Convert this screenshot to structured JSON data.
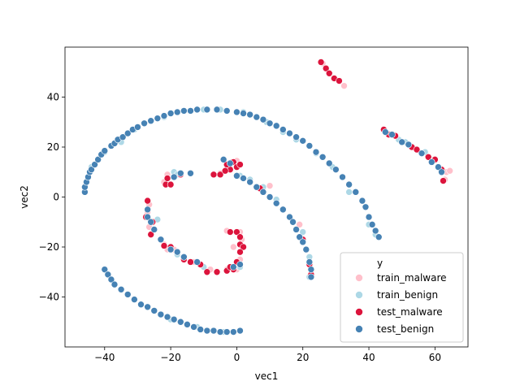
{
  "chart_data": {
    "type": "scatter",
    "xlabel": "vec1",
    "ylabel": "vec2",
    "xlim": [
      -52,
      70
    ],
    "ylim": [
      -60,
      60
    ],
    "xticks": [
      -40,
      -20,
      0,
      20,
      40,
      60
    ],
    "yticks": [
      -40,
      -20,
      0,
      20,
      40
    ],
    "grid": false,
    "legend": {
      "title": "y",
      "placement": "lower-right"
    },
    "series": [
      {
        "name": "train_malware",
        "color": "#ffc0cb",
        "points": [
          [
            26,
            53.5
          ],
          [
            32.5,
            44.5
          ],
          [
            63.5,
            10
          ],
          [
            63,
            7
          ],
          [
            64.5,
            10.5
          ],
          [
            -21,
            9
          ],
          [
            -22,
            6
          ],
          [
            -18,
            9
          ],
          [
            -14,
            9.5
          ],
          [
            -2.5,
            13
          ],
          [
            -1.5,
            14
          ],
          [
            0,
            14.5
          ],
          [
            -5,
            9.5
          ],
          [
            -26.5,
            -3
          ],
          [
            -27,
            -6
          ],
          [
            -26.5,
            -12
          ],
          [
            -26,
            -15
          ],
          [
            -22,
            -19
          ],
          [
            -21,
            -21
          ],
          [
            -19,
            -21
          ],
          [
            -13,
            -26
          ],
          [
            -10,
            -28
          ],
          [
            -8,
            -29
          ],
          [
            -3,
            -29
          ],
          [
            0,
            -29
          ],
          [
            1,
            -25
          ],
          [
            1.5,
            -17
          ],
          [
            -1,
            -20
          ],
          [
            -3,
            -13.5
          ],
          [
            1,
            -14
          ],
          [
            10,
            4.5
          ],
          [
            14,
            -5
          ],
          [
            19,
            -11
          ]
        ]
      },
      {
        "name": "train_benign",
        "color": "#add8e6",
        "points": [
          [
            -44,
            12
          ],
          [
            -40,
            18
          ],
          [
            -35,
            22
          ],
          [
            -31,
            27
          ],
          [
            -22,
            32
          ],
          [
            -10,
            35
          ],
          [
            -5,
            35
          ],
          [
            2,
            34
          ],
          [
            9,
            30
          ],
          [
            14,
            26
          ],
          [
            18,
            23
          ],
          [
            24,
            17.5
          ],
          [
            29,
            12
          ],
          [
            34,
            2
          ],
          [
            40,
            -11
          ],
          [
            42,
            -15
          ],
          [
            -19,
            10
          ],
          [
            -18,
            9
          ],
          [
            -24,
            -9
          ],
          [
            -25,
            -13
          ],
          [
            -18,
            -23
          ],
          [
            -10,
            -28
          ],
          [
            1,
            -28
          ],
          [
            -38,
            -33
          ],
          [
            -35,
            -37
          ],
          [
            -20,
            -49
          ],
          [
            -12,
            -52
          ],
          [
            -4,
            -54
          ],
          [
            1,
            8.5
          ],
          [
            4,
            7
          ],
          [
            8,
            4
          ],
          [
            12,
            -1
          ],
          [
            20,
            -14
          ],
          [
            22,
            -24
          ],
          [
            22,
            -32
          ],
          [
            49,
            23
          ],
          [
            51,
            22
          ],
          [
            57,
            18
          ]
        ]
      },
      {
        "name": "test_malware",
        "color": "#dc143c",
        "points": [
          [
            25.5,
            54
          ],
          [
            27,
            51.5
          ],
          [
            28,
            49.5
          ],
          [
            29.5,
            47.5
          ],
          [
            31,
            46.5
          ],
          [
            44.5,
            27
          ],
          [
            46,
            25
          ],
          [
            48,
            24.5
          ],
          [
            53,
            20
          ],
          [
            54.5,
            19
          ],
          [
            58,
            16
          ],
          [
            60,
            15
          ],
          [
            62,
            11
          ],
          [
            62.5,
            6.5
          ],
          [
            -21,
            7.5
          ],
          [
            -21.5,
            5
          ],
          [
            -20,
            5
          ],
          [
            -17,
            9
          ],
          [
            -14,
            9.5
          ],
          [
            -7,
            9
          ],
          [
            -5,
            9
          ],
          [
            -2,
            11
          ],
          [
            -3,
            13
          ],
          [
            -1,
            14
          ],
          [
            0,
            12
          ],
          [
            1,
            13
          ],
          [
            -3.5,
            10.5
          ],
          [
            -27,
            -1.5
          ],
          [
            -27.5,
            -8
          ],
          [
            -25.5,
            -10
          ],
          [
            -26,
            -15
          ],
          [
            -22,
            -19.5
          ],
          [
            -20,
            -20
          ],
          [
            -16,
            -25
          ],
          [
            -14,
            -26
          ],
          [
            -11,
            -27
          ],
          [
            -9,
            -30
          ],
          [
            -6,
            -30
          ],
          [
            -3,
            -29.5
          ],
          [
            -1,
            -29
          ],
          [
            -2,
            -28
          ],
          [
            0,
            -26
          ],
          [
            -2,
            -14
          ],
          [
            0,
            -14
          ],
          [
            1,
            -16
          ],
          [
            1,
            -19
          ],
          [
            2,
            -20
          ],
          [
            1,
            -22
          ],
          [
            7,
            3.5
          ],
          [
            14,
            -5
          ],
          [
            20,
            -17
          ],
          [
            22,
            -27
          ],
          [
            22.5,
            -31
          ]
        ]
      },
      {
        "name": "test_benign",
        "color": "#4682b4",
        "points": [
          [
            -46,
            2
          ],
          [
            -46,
            4
          ],
          [
            -45.5,
            6
          ],
          [
            -45,
            8
          ],
          [
            -44.5,
            10
          ],
          [
            -44,
            11
          ],
          [
            -43,
            13
          ],
          [
            -42,
            15
          ],
          [
            -41,
            17
          ],
          [
            -40,
            18.5
          ],
          [
            -38,
            20.5
          ],
          [
            -37,
            21.5
          ],
          [
            -36,
            23
          ],
          [
            -34.5,
            24
          ],
          [
            -33,
            25.5
          ],
          [
            -31.5,
            27
          ],
          [
            -30,
            28
          ],
          [
            -28,
            29.5
          ],
          [
            -26,
            30.5
          ],
          [
            -24,
            31.5
          ],
          [
            -22,
            32.5
          ],
          [
            -20,
            33.5
          ],
          [
            -18,
            34
          ],
          [
            -16,
            34.5
          ],
          [
            -14,
            34.5
          ],
          [
            -12,
            35
          ],
          [
            -9,
            35
          ],
          [
            -6,
            35
          ],
          [
            -3,
            34.5
          ],
          [
            0,
            34
          ],
          [
            2,
            33.5
          ],
          [
            4,
            33
          ],
          [
            6,
            32
          ],
          [
            8,
            31
          ],
          [
            10,
            29.5
          ],
          [
            12,
            28.5
          ],
          [
            14,
            27
          ],
          [
            16,
            25.5
          ],
          [
            18,
            24
          ],
          [
            20,
            22.5
          ],
          [
            22,
            20.5
          ],
          [
            24,
            18
          ],
          [
            26,
            16
          ],
          [
            28,
            13.5
          ],
          [
            30,
            11
          ],
          [
            32,
            8
          ],
          [
            34,
            5
          ],
          [
            36,
            2
          ],
          [
            38,
            -1.5
          ],
          [
            39,
            -4
          ],
          [
            40,
            -8
          ],
          [
            41,
            -11
          ],
          [
            42,
            -13.5
          ],
          [
            43,
            -16
          ],
          [
            -17,
            9.5
          ],
          [
            -14,
            9.5
          ],
          [
            -19,
            8
          ],
          [
            -4,
            15
          ],
          [
            -2,
            13.5
          ],
          [
            0,
            8.5
          ],
          [
            2,
            7.5
          ],
          [
            4,
            6
          ],
          [
            6,
            4
          ],
          [
            8,
            2
          ],
          [
            10,
            0
          ],
          [
            12,
            -2.5
          ],
          [
            14,
            -5
          ],
          [
            16,
            -8
          ],
          [
            17,
            -10
          ],
          [
            18,
            -13
          ],
          [
            19,
            -16
          ],
          [
            20,
            -18
          ],
          [
            21,
            -21
          ],
          [
            22,
            -26
          ],
          [
            22.5,
            -29
          ],
          [
            22.5,
            -32
          ],
          [
            -27,
            -5
          ],
          [
            -27,
            -8
          ],
          [
            -26,
            -10
          ],
          [
            -25,
            -13
          ],
          [
            -23,
            -17
          ],
          [
            -20,
            -21
          ],
          [
            -18,
            -22
          ],
          [
            -16,
            -24
          ],
          [
            -12,
            -26
          ],
          [
            -1,
            -28
          ],
          [
            1,
            -27
          ],
          [
            -40,
            -29
          ],
          [
            -39,
            -31
          ],
          [
            -38,
            -33
          ],
          [
            -37,
            -35
          ],
          [
            -35,
            -37
          ],
          [
            -33,
            -39
          ],
          [
            -31,
            -41
          ],
          [
            -29,
            -43
          ],
          [
            -27,
            -44
          ],
          [
            -25,
            -45.5
          ],
          [
            -23,
            -47
          ],
          [
            -21,
            -48
          ],
          [
            -19,
            -49
          ],
          [
            -17,
            -50
          ],
          [
            -15,
            -51
          ],
          [
            -13,
            -52
          ],
          [
            -11,
            -53
          ],
          [
            -9,
            -53.5
          ],
          [
            -7,
            -53.5
          ],
          [
            -5,
            -54
          ],
          [
            -3,
            -54
          ],
          [
            -1,
            -54
          ],
          [
            1,
            -53.5
          ],
          [
            45,
            26
          ],
          [
            47,
            25
          ],
          [
            50,
            22
          ],
          [
            52,
            21
          ],
          [
            56,
            17.5
          ],
          [
            59,
            14
          ],
          [
            61,
            12
          ],
          [
            62,
            10
          ]
        ]
      }
    ]
  }
}
